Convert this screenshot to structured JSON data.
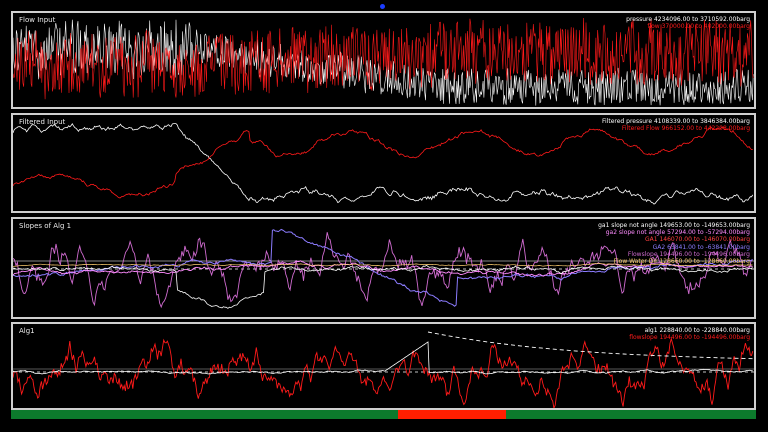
{
  "colors": {
    "pressure": "#ffffff",
    "flow": "#ff1a1a",
    "flowbase": "#ff2a2a",
    "alg": "#d0d0d0",
    "ga1": "#ff8cff",
    "ga2": "#8c7cff",
    "flowslope": "#cf6bcf",
    "flowwater": "#ffd070",
    "green": "#0c7a2c",
    "redbar": "#ff1e00"
  },
  "panels": [
    {
      "title": "Flow Input",
      "legend": [
        {
          "text": "pressure 4234096.00 to 3710592.00barg",
          "color": "#ffffff"
        },
        {
          "text": "flow 370000.00 to 402000.00barg",
          "color": "#ff1a1a"
        }
      ]
    },
    {
      "title": "Filtered Input",
      "legend": [
        {
          "text": "Filtered pressure 4108339.00 to 3846384.00barg",
          "color": "#ffffff"
        },
        {
          "text": "Filtered Flow 966152.00 to 442208.00barg",
          "color": "#ff1a1a"
        }
      ]
    },
    {
      "title": "Slopes of Alg 1",
      "legend": [
        {
          "text": "ga1 slope not angle 149653.00 to -149653.00barg",
          "color": "#ffffff"
        },
        {
          "text": "ga2 slope not angle 57294.00 to -57294.00barg",
          "color": "#ff8cff"
        },
        {
          "text": "GA1 146070.00 to -146070.00barg",
          "color": "#ff4040"
        },
        {
          "text": "GA2 63841.00 to -63841.00barg",
          "color": "#8c7cff"
        },
        {
          "text": "Flowslope 194496.00 to -194496.00barg",
          "color": "#cf6bcf"
        },
        {
          "text": "Flow Water Dir 128660.00 to -128660.00barg",
          "color": "#ffd070"
        }
      ]
    },
    {
      "title": "Alg1",
      "legend": [
        {
          "text": "alg1 228840.00 to -228840.00barg",
          "color": "#ffffff"
        },
        {
          "text": "flowslope 194496.00 to -194496.00barg",
          "color": "#ff1a1a"
        }
      ]
    }
  ],
  "status_segments": [
    {
      "state": "normal",
      "fraction": 0.52,
      "color": "#0c7a2c"
    },
    {
      "state": "alarm",
      "fraction": 0.145,
      "color": "#ff1e00"
    },
    {
      "state": "normal",
      "fraction": 0.335,
      "color": "#0c7a2c"
    }
  ]
}
